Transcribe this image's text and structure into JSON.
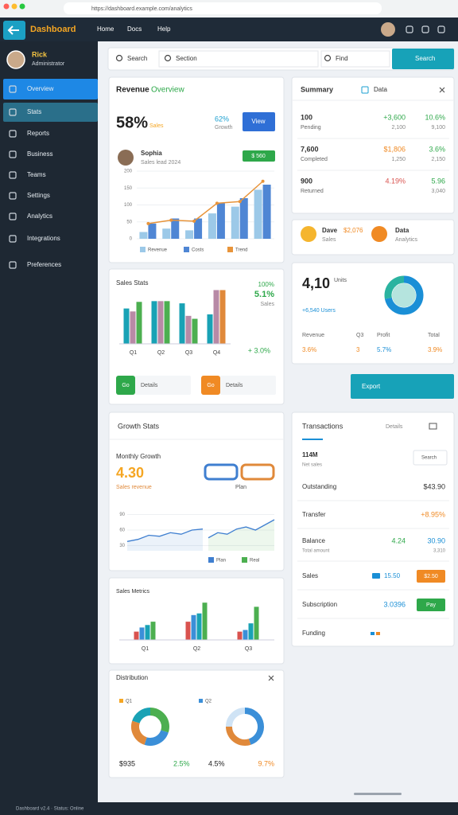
{
  "browser": {
    "url": "https://dashboard.example.com/analytics"
  },
  "header": {
    "logo": "Dashboard",
    "nav": [
      "Home",
      "Docs",
      "Help"
    ]
  },
  "sidebar": {
    "user": {
      "name": "Rick",
      "role": "Administrator"
    },
    "menu": [
      "Overview",
      "Stats",
      "Reports",
      "Business",
      "Teams",
      "Settings",
      "Analytics",
      "Integrations",
      "Preferences"
    ]
  },
  "search": {
    "field1": "Search",
    "field2": "Section",
    "field3": "Find",
    "button": "Search"
  },
  "revenue": {
    "title": "Revenue",
    "title_tag": "Overview",
    "big": "58%",
    "big_label": "Sales",
    "stat": "62%",
    "stat_label": "Growth",
    "button": "View",
    "person": {
      "name": "Sophia",
      "detail": "Sales lead 2024"
    },
    "badge": "$ 560",
    "chart": {
      "type": "bar",
      "ylim": [
        0,
        200
      ],
      "yticks": [
        0,
        50,
        100,
        150,
        200
      ],
      "series": [
        {
          "name": "Revenue",
          "color": "#9cc9e8",
          "values": [
            20,
            30,
            25,
            75,
            95,
            145
          ]
        },
        {
          "name": "Costs",
          "color": "#4f86d4",
          "values": [
            45,
            60,
            60,
            105,
            120,
            160
          ]
        },
        {
          "name": "Trend",
          "color": "#e8943a",
          "type": "line",
          "values": [
            45,
            55,
            52,
            105,
            110,
            170
          ]
        }
      ]
    }
  },
  "summary": {
    "title": "Summary",
    "tab": "Data",
    "rows": [
      {
        "value": "100",
        "label": "Pending",
        "change": "+3,600",
        "change_sub": "2,100",
        "pct": "10.6%",
        "pct_sub": "9,100"
      },
      {
        "value": "7,600",
        "label": "Completed",
        "change": "$1,806",
        "change_sub": "1,250",
        "pct": "3.6%",
        "pct_sub": "2,150"
      },
      {
        "value": "900",
        "label": "Returned",
        "change": "4.19%",
        "change_sub": "",
        "pct": "5.96",
        "pct_sub": "3,040"
      }
    ]
  },
  "chips": [
    {
      "name": "Dave",
      "amount": "$2,076",
      "sub": "Sales"
    },
    {
      "name": "Data",
      "amount": "",
      "sub": "Analytics"
    }
  ],
  "sales": {
    "title": "Sales Stats",
    "stat1": "100%",
    "stat2": "5.1%",
    "stat3": "Sales",
    "change": "+ 3.0%",
    "chart": {
      "type": "bar",
      "ylim": [
        0,
        80
      ],
      "categories": [
        "Q1",
        "Q2",
        "Q3",
        "Q4"
      ],
      "series": [
        {
          "color": "#19a2b5",
          "values": [
            48,
            58,
            55,
            40
          ]
        },
        {
          "color": "#b88aa6",
          "values": [
            44,
            58,
            38,
            73
          ]
        },
        {
          "color": "#4caf50",
          "values": [
            57,
            58,
            34,
            null
          ]
        },
        {
          "color": "#e0893a",
          "values": [
            null,
            null,
            null,
            73
          ]
        }
      ]
    },
    "buttons": [
      {
        "icon": "Go",
        "label": "Details"
      },
      {
        "icon": "Go",
        "label": "Details"
      }
    ]
  },
  "units": {
    "big": "4,10",
    "big_label": "Units",
    "users": "+6,540 Users",
    "donut": {
      "type": "pie",
      "series": [
        {
          "color": "#1a8fd6",
          "value": 72
        },
        {
          "color": "#2bb3a0",
          "value": 28
        }
      ]
    },
    "stats": [
      {
        "label": "Revenue",
        "value": "3.6%"
      },
      {
        "label": "Q3",
        "value": "3"
      },
      {
        "label": "Profit",
        "value": "5.7%"
      },
      {
        "label": "Total",
        "value": "3.9%"
      }
    ]
  },
  "export": "Export",
  "growth": {
    "title": "Growth Stats",
    "subtitle": "Monthly Growth",
    "big": "4.30",
    "big_label": "Sales revenue",
    "tag": "Plan",
    "chart": {
      "type": "line",
      "ylim": [
        20,
        100
      ],
      "yticks": [
        30,
        60,
        90
      ],
      "series": [
        {
          "name": "Plan",
          "color": "#3f7fd0",
          "values": [
            38,
            42,
            50,
            48,
            55,
            52,
            60,
            62
          ]
        },
        {
          "name": "Real",
          "color": "#4caf50",
          "values": [
            45,
            55,
            52,
            62,
            66,
            60,
            70,
            80
          ]
        }
      ]
    }
  },
  "transactions": {
    "title": "Transactions",
    "tab": "Details",
    "search": "Search",
    "total": "114M",
    "total_label": "Net sales",
    "rows": [
      {
        "label": "Outstanding",
        "value": "$43.90"
      },
      {
        "label": "Transfer",
        "value": "+8.95%"
      },
      {
        "label": "Balance",
        "sub": "Total amount",
        "value": "4.24",
        "value2": "30.90",
        "sub2": "3,310"
      },
      {
        "label": "Sales",
        "value": "15.50",
        "button": "$2.50"
      },
      {
        "label": "Subscription",
        "value": "3.0396",
        "button": "Pay"
      },
      {
        "label": "Funding"
      }
    ]
  },
  "metrics": {
    "title": "Sales Metrics",
    "chart": {
      "type": "bar",
      "ylim": [
        0,
        50
      ],
      "categories": [
        "Q1",
        "Q2",
        "Q3"
      ],
      "series": [
        {
          "color": "#d9534f",
          "values": [
            10,
            22,
            10
          ]
        },
        {
          "color": "#3b8fd8",
          "values": [
            15,
            30,
            12
          ]
        },
        {
          "color": "#19a2b5",
          "values": [
            18,
            32,
            20
          ]
        },
        {
          "color": "#4caf50",
          "values": [
            22,
            45,
            40
          ]
        }
      ]
    }
  },
  "distribution": {
    "title": "Distribution",
    "legend": [
      "Q1",
      "Q2"
    ],
    "donuts": [
      {
        "type": "pie",
        "series": [
          {
            "color": "#4caf50",
            "value": 30
          },
          {
            "color": "#3b8fd8",
            "value": 25
          },
          {
            "color": "#e0893a",
            "value": 25
          },
          {
            "color": "#19a2b5",
            "value": 20
          }
        ]
      },
      {
        "type": "pie",
        "series": [
          {
            "color": "#3b8fd8",
            "value": 45
          },
          {
            "color": "#e0893a",
            "value": 30
          },
          {
            "color": "#cfe3f5",
            "value": 25
          }
        ]
      }
    ],
    "values": [
      "$935",
      "2.5%",
      "4.5%",
      "9.7%"
    ]
  },
  "footer": "Dashboard v2.4  ·  Status: Online"
}
